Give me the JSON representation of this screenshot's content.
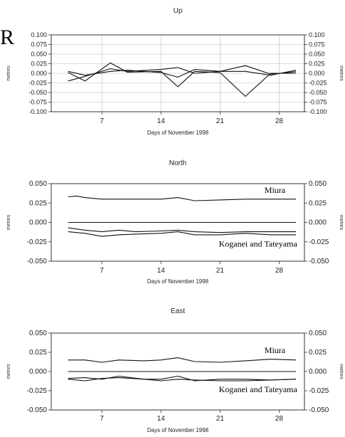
{
  "page": {
    "edge_glyph": "R"
  },
  "chart_data": [
    {
      "type": "line",
      "title": "Up",
      "xlabel": "Days of November 1998",
      "ylabel": "metres",
      "ylim": [
        -0.1,
        0.1
      ],
      "xlim": [
        1,
        31
      ],
      "x_ticks": [
        7,
        14,
        21,
        28
      ],
      "y_ticks": [
        "0.100",
        "0.075",
        "0.050",
        "0.025",
        "0.000",
        "-0.025",
        "-0.050",
        "-0.075",
        "-0.100"
      ],
      "y_tick_values": [
        0.1,
        0.075,
        0.05,
        0.025,
        0,
        -0.025,
        -0.05,
        -0.075,
        -0.1
      ],
      "grid": true,
      "labels": [],
      "series": [
        {
          "x": [
            3,
            5,
            8,
            10,
            14,
            16,
            18,
            21,
            24,
            27,
            30
          ],
          "y": [
            0.002,
            -0.02,
            0.027,
            0.003,
            0.005,
            -0.035,
            0.005,
            0.002,
            -0.06,
            0.0,
            0.0
          ]
        },
        {
          "x": [
            3,
            5,
            8,
            10,
            14,
            16,
            18,
            21,
            24,
            27,
            30
          ],
          "y": [
            -0.02,
            -0.008,
            0.012,
            0.005,
            0.01,
            0.015,
            0.0,
            0.005,
            0.02,
            -0.002,
            0.004
          ]
        },
        {
          "x": [
            3,
            5,
            8,
            10,
            14,
            16,
            18,
            21,
            24,
            27,
            30
          ],
          "y": [
            0.005,
            -0.005,
            0.005,
            0.008,
            0.002,
            -0.01,
            0.01,
            0.005,
            0.005,
            -0.005,
            0.008
          ]
        }
      ]
    },
    {
      "type": "line",
      "title": "North",
      "xlabel": "Days of November 1998",
      "ylabel": "metres",
      "ylim": [
        -0.05,
        0.05
      ],
      "xlim": [
        1,
        31
      ],
      "x_ticks": [
        7,
        14,
        21,
        28
      ],
      "y_ticks": [
        "0.050",
        "0.025",
        "0.000",
        "-0.025",
        "-0.050"
      ],
      "y_tick_values": [
        0.05,
        0.025,
        0,
        -0.025,
        -0.05
      ],
      "grid": false,
      "labels": [
        {
          "text": "Miura",
          "x": 27.5,
          "y": 0.038
        },
        {
          "text": "Koganei and Tateyama",
          "x": 25.5,
          "y": -0.031
        }
      ],
      "series": [
        {
          "x": [
            3,
            4,
            5,
            7,
            10,
            14,
            16,
            18,
            21,
            24,
            27,
            30
          ],
          "y": [
            0.033,
            0.034,
            0.032,
            0.03,
            0.03,
            0.03,
            0.032,
            0.028,
            0.029,
            0.03,
            0.03,
            0.03
          ]
        },
        {
          "x": [
            3,
            30
          ],
          "y": [
            0.0,
            0.0
          ]
        },
        {
          "x": [
            3,
            5,
            7,
            9,
            11,
            14,
            16,
            18,
            21,
            24,
            27,
            30
          ],
          "y": [
            -0.007,
            -0.01,
            -0.012,
            -0.01,
            -0.012,
            -0.011,
            -0.01,
            -0.012,
            -0.013,
            -0.012,
            -0.012,
            -0.012
          ]
        },
        {
          "x": [
            3,
            5,
            7,
            9,
            11,
            14,
            16,
            18,
            21,
            24,
            27,
            30
          ],
          "y": [
            -0.012,
            -0.014,
            -0.018,
            -0.016,
            -0.015,
            -0.014,
            -0.012,
            -0.016,
            -0.016,
            -0.014,
            -0.016,
            -0.016
          ]
        }
      ]
    },
    {
      "type": "line",
      "title": "East",
      "xlabel": "Days of November 1998",
      "ylabel": "metres",
      "ylim": [
        -0.05,
        0.05
      ],
      "xlim": [
        1,
        31
      ],
      "x_ticks": [
        7,
        14,
        21,
        28
      ],
      "y_ticks": [
        "0.050",
        "0.025",
        "0.000",
        "-0.025",
        "-0.050"
      ],
      "y_tick_values": [
        0.05,
        0.025,
        0,
        -0.025,
        -0.05
      ],
      "grid": false,
      "labels": [
        {
          "text": "Miura",
          "x": 27.5,
          "y": 0.024
        },
        {
          "text": "Koganei and Tateyama",
          "x": 25.5,
          "y": -0.027
        }
      ],
      "series": [
        {
          "x": [
            3,
            5,
            7,
            9,
            12,
            14,
            16,
            18,
            21,
            24,
            27,
            30
          ],
          "y": [
            0.015,
            0.015,
            0.012,
            0.015,
            0.014,
            0.015,
            0.018,
            0.013,
            0.012,
            0.014,
            0.016,
            0.015
          ]
        },
        {
          "x": [
            3,
            30
          ],
          "y": [
            0.0,
            0.0
          ]
        },
        {
          "x": [
            3,
            5,
            7,
            9,
            12,
            14,
            16,
            18,
            21,
            24,
            27,
            30
          ],
          "y": [
            -0.009,
            -0.008,
            -0.01,
            -0.006,
            -0.01,
            -0.01,
            -0.006,
            -0.012,
            -0.01,
            -0.01,
            -0.011,
            -0.01
          ]
        },
        {
          "x": [
            3,
            5,
            7,
            9,
            12,
            14,
            16,
            18,
            21,
            24,
            27,
            30
          ],
          "y": [
            -0.01,
            -0.012,
            -0.009,
            -0.008,
            -0.01,
            -0.012,
            -0.01,
            -0.011,
            -0.012,
            -0.012,
            -0.011,
            -0.01
          ]
        }
      ]
    }
  ]
}
